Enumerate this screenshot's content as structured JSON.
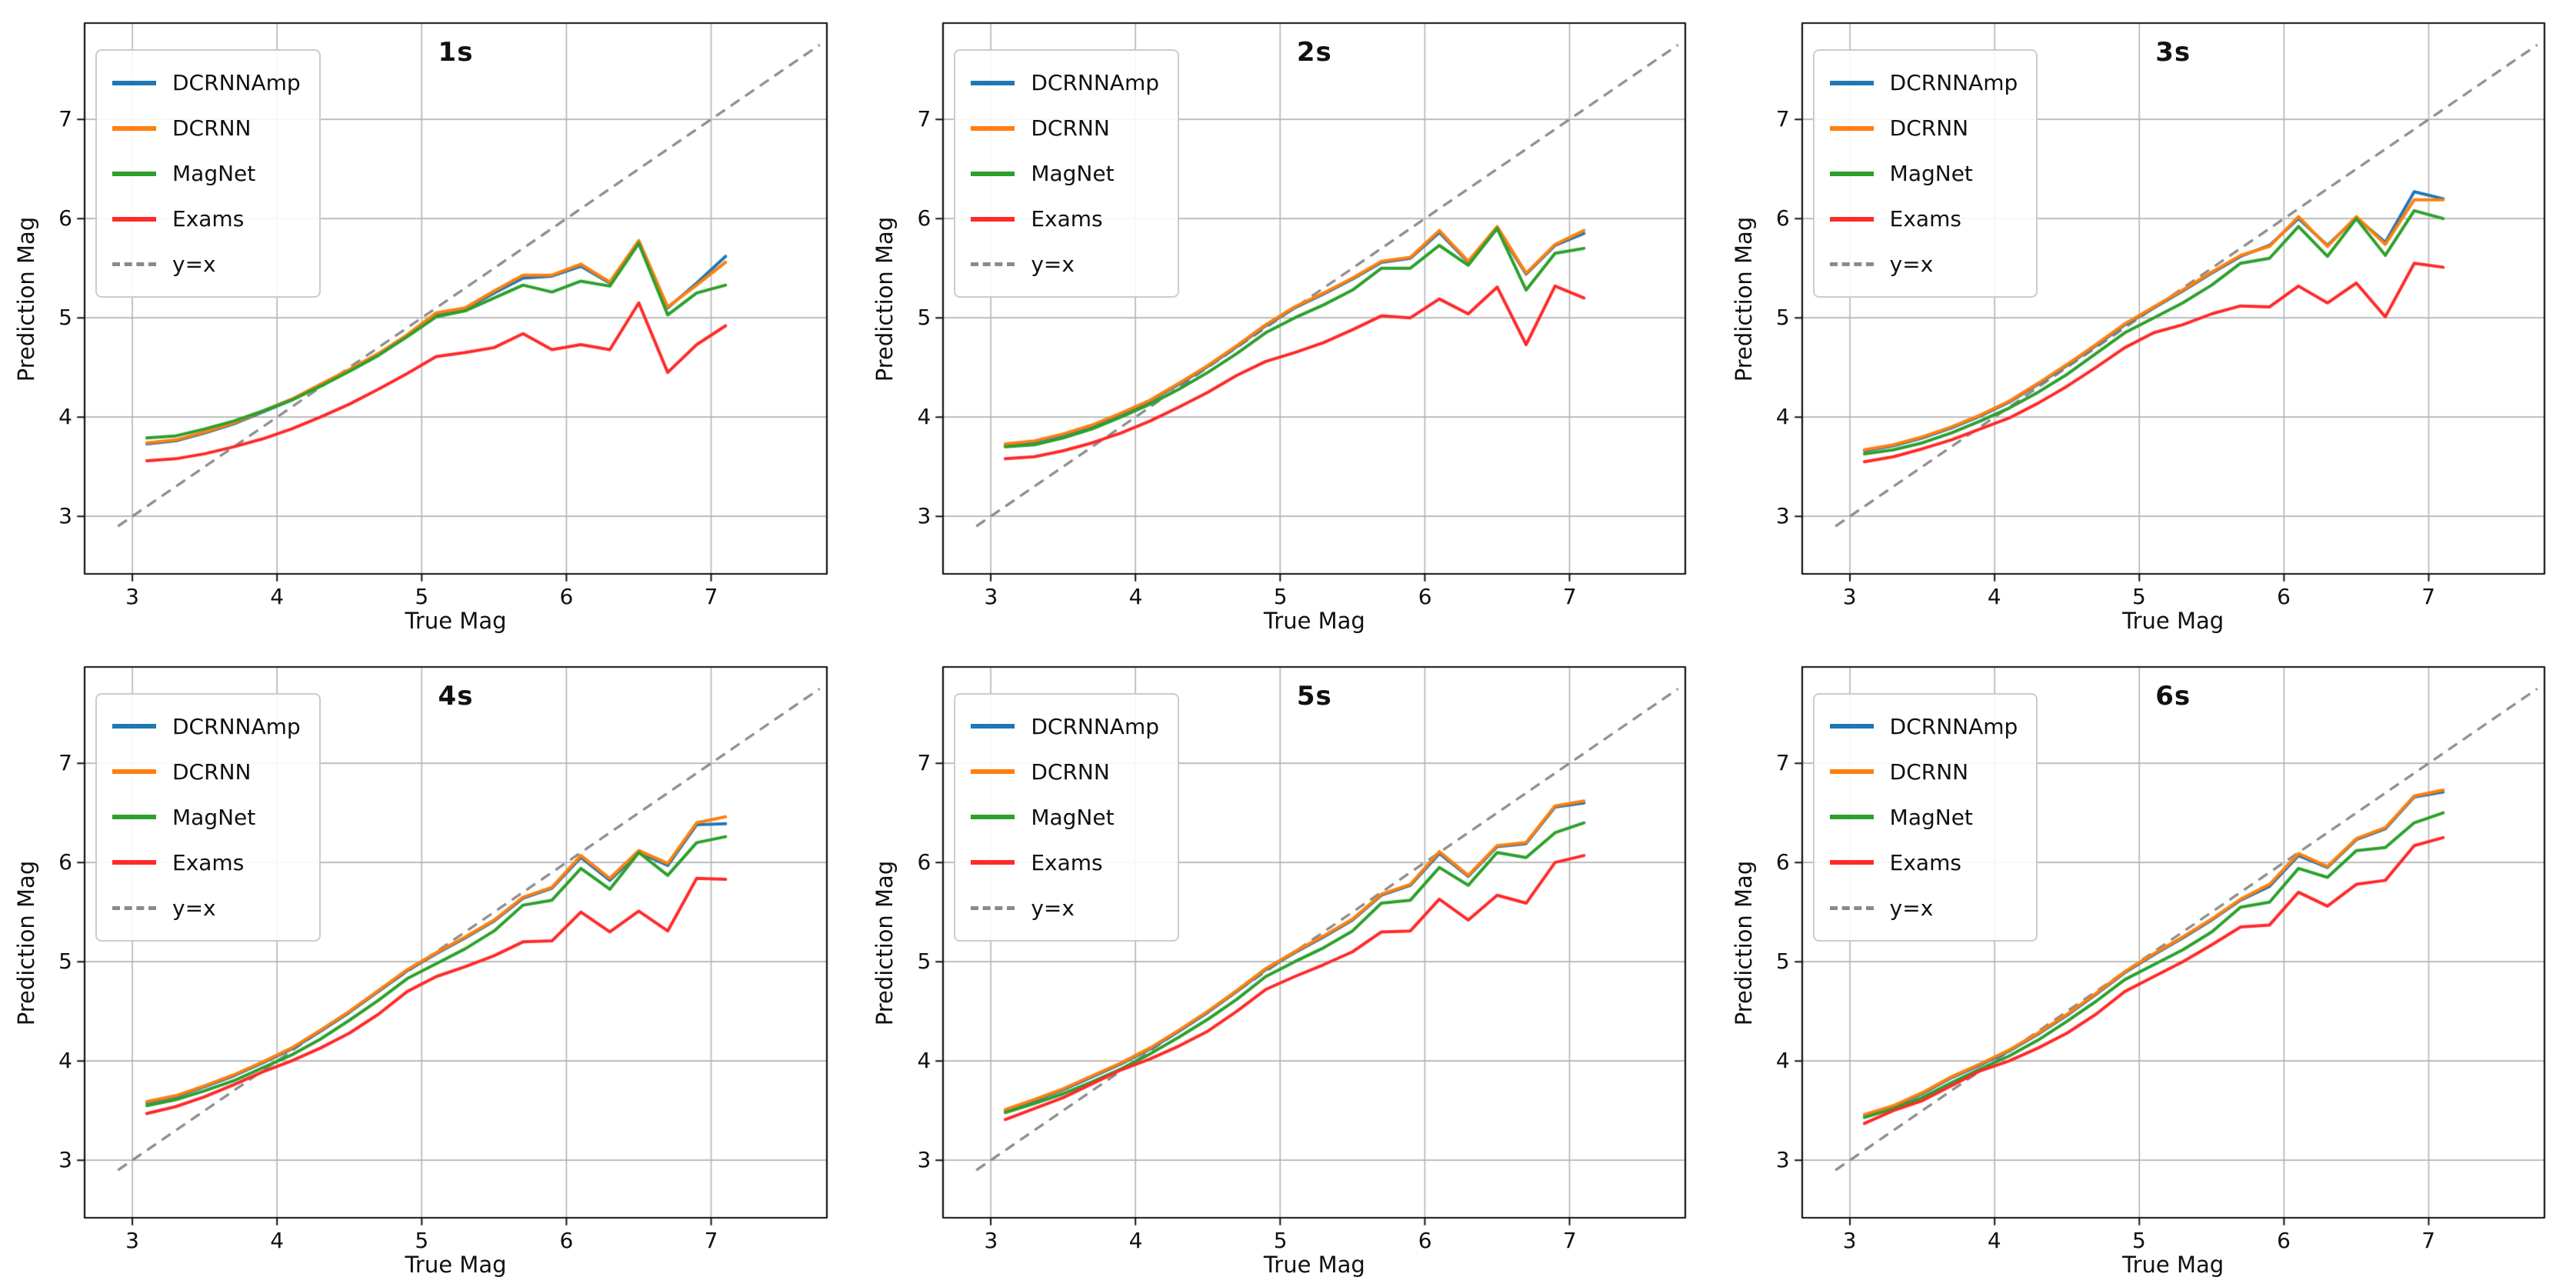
{
  "figure": {
    "xlabel": "True Mag",
    "ylabel": "Prediction Mag"
  },
  "palette": {
    "dcrnnamp": "#1f77b4",
    "dcrnn": "#ff7f0e",
    "magnet": "#2ca02c",
    "exams": "#ff2a2a",
    "identity": "#8a8a8a",
    "grid": "#b3b3b3",
    "spine": "#111111"
  },
  "chart_data": [
    {
      "type": "line",
      "title": "1s",
      "xlabel": "True Mag",
      "ylabel": "Prediction Mag",
      "xlim": [
        2.67,
        7.8
      ],
      "ylim": [
        2.42,
        7.97
      ],
      "xticks": [
        "3",
        "4",
        "5",
        "6",
        "7"
      ],
      "yticks": [
        "3",
        "4",
        "5",
        "6",
        "7"
      ],
      "xtick_values": [
        3,
        4,
        5,
        6,
        7
      ],
      "ytick_values": [
        3,
        4,
        5,
        6,
        7
      ],
      "grid": true,
      "legend_position": "upper-left",
      "x": [
        3.1,
        3.3,
        3.5,
        3.7,
        3.9,
        4.1,
        4.3,
        4.5,
        4.7,
        4.9,
        5.1,
        5.3,
        5.5,
        5.7,
        5.9,
        6.1,
        6.3,
        6.5,
        6.7,
        6.9,
        7.1
      ],
      "series": [
        {
          "name": "DCRNNAmp",
          "color": "#1f77b4",
          "values": [
            3.73,
            3.76,
            3.84,
            3.93,
            4.05,
            4.17,
            4.32,
            4.47,
            4.63,
            4.82,
            5.03,
            5.09,
            5.25,
            5.4,
            5.42,
            5.52,
            5.35,
            5.77,
            5.1,
            5.35,
            5.62
          ]
        },
        {
          "name": "DCRNN",
          "color": "#ff7f0e",
          "values": [
            3.74,
            3.77,
            3.85,
            3.94,
            4.06,
            4.18,
            4.33,
            4.48,
            4.64,
            4.83,
            5.05,
            5.1,
            5.27,
            5.43,
            5.43,
            5.54,
            5.36,
            5.78,
            5.11,
            5.33,
            5.56
          ]
        },
        {
          "name": "MagNet",
          "color": "#2ca02c",
          "values": [
            3.79,
            3.81,
            3.88,
            3.96,
            4.06,
            4.17,
            4.31,
            4.46,
            4.62,
            4.81,
            5.01,
            5.07,
            5.2,
            5.33,
            5.26,
            5.37,
            5.32,
            5.75,
            5.03,
            5.25,
            5.33
          ]
        },
        {
          "name": "Exams",
          "color": "#ff2a2a",
          "values": [
            3.56,
            3.58,
            3.63,
            3.7,
            3.78,
            3.88,
            4.0,
            4.13,
            4.28,
            4.44,
            4.61,
            4.65,
            4.7,
            4.84,
            4.68,
            4.73,
            4.68,
            5.15,
            4.45,
            4.73,
            4.92
          ]
        }
      ],
      "identity_line": {
        "label": "y=x",
        "color": "#8a8a8a",
        "from": 2.9,
        "to": 7.75
      }
    },
    {
      "type": "line",
      "title": "2s",
      "xlabel": "True Mag",
      "ylabel": "Prediction Mag",
      "xlim": [
        2.67,
        7.8
      ],
      "ylim": [
        2.42,
        7.97
      ],
      "xticks": [
        "3",
        "4",
        "5",
        "6",
        "7"
      ],
      "yticks": [
        "3",
        "4",
        "5",
        "6",
        "7"
      ],
      "xtick_values": [
        3,
        4,
        5,
        6,
        7
      ],
      "ytick_values": [
        3,
        4,
        5,
        6,
        7
      ],
      "grid": true,
      "legend_position": "upper-left",
      "x": [
        3.1,
        3.3,
        3.5,
        3.7,
        3.9,
        4.1,
        4.3,
        4.5,
        4.7,
        4.9,
        5.1,
        5.3,
        5.5,
        5.7,
        5.9,
        6.1,
        6.3,
        6.5,
        6.7,
        6.9,
        7.1
      ],
      "series": [
        {
          "name": "DCRNNAmp",
          "color": "#1f77b4",
          "values": [
            3.72,
            3.75,
            3.82,
            3.91,
            4.03,
            4.16,
            4.33,
            4.51,
            4.71,
            4.92,
            5.1,
            5.24,
            5.39,
            5.56,
            5.6,
            5.86,
            5.56,
            5.9,
            5.44,
            5.73,
            5.85
          ]
        },
        {
          "name": "DCRNN",
          "color": "#ff7f0e",
          "values": [
            3.73,
            3.76,
            3.83,
            3.92,
            4.04,
            4.17,
            4.34,
            4.52,
            4.72,
            4.93,
            5.11,
            5.25,
            5.4,
            5.57,
            5.61,
            5.88,
            5.57,
            5.92,
            5.45,
            5.74,
            5.88
          ]
        },
        {
          "name": "MagNet",
          "color": "#2ca02c",
          "values": [
            3.7,
            3.72,
            3.79,
            3.88,
            4.0,
            4.13,
            4.28,
            4.45,
            4.64,
            4.85,
            5.0,
            5.13,
            5.28,
            5.5,
            5.5,
            5.73,
            5.53,
            5.9,
            5.28,
            5.65,
            5.7
          ]
        },
        {
          "name": "Exams",
          "color": "#ff2a2a",
          "values": [
            3.58,
            3.6,
            3.66,
            3.74,
            3.84,
            3.96,
            4.1,
            4.25,
            4.42,
            4.56,
            4.65,
            4.75,
            4.88,
            5.02,
            5.0,
            5.19,
            5.04,
            5.31,
            4.73,
            5.32,
            5.2
          ]
        }
      ],
      "identity_line": {
        "label": "y=x",
        "color": "#8a8a8a",
        "from": 2.9,
        "to": 7.75
      }
    },
    {
      "type": "line",
      "title": "3s",
      "xlabel": "True Mag",
      "ylabel": "Prediction Mag",
      "xlim": [
        2.67,
        7.8
      ],
      "ylim": [
        2.42,
        7.97
      ],
      "xticks": [
        "3",
        "4",
        "5",
        "6",
        "7"
      ],
      "yticks": [
        "3",
        "4",
        "5",
        "6",
        "7"
      ],
      "xtick_values": [
        3,
        4,
        5,
        6,
        7
      ],
      "ytick_values": [
        3,
        4,
        5,
        6,
        7
      ],
      "grid": true,
      "legend_position": "upper-left",
      "x": [
        3.1,
        3.3,
        3.5,
        3.7,
        3.9,
        4.1,
        4.3,
        4.5,
        4.7,
        4.9,
        5.1,
        5.3,
        5.5,
        5.7,
        5.9,
        6.1,
        6.3,
        6.5,
        6.7,
        6.9,
        7.1
      ],
      "series": [
        {
          "name": "DCRNNAmp",
          "color": "#1f77b4",
          "values": [
            3.66,
            3.71,
            3.79,
            3.89,
            4.01,
            4.15,
            4.33,
            4.52,
            4.72,
            4.93,
            5.1,
            5.27,
            5.45,
            5.62,
            5.73,
            6.0,
            5.73,
            6.01,
            5.76,
            6.27,
            6.2
          ]
        },
        {
          "name": "DCRNN",
          "color": "#ff7f0e",
          "values": [
            3.67,
            3.72,
            3.8,
            3.9,
            4.02,
            4.16,
            4.34,
            4.53,
            4.73,
            4.94,
            5.11,
            5.28,
            5.46,
            5.63,
            5.72,
            6.02,
            5.72,
            6.02,
            5.74,
            6.19,
            6.19
          ]
        },
        {
          "name": "MagNet",
          "color": "#2ca02c",
          "values": [
            3.63,
            3.67,
            3.74,
            3.84,
            3.96,
            4.09,
            4.25,
            4.43,
            4.64,
            4.85,
            5.0,
            5.15,
            5.33,
            5.55,
            5.6,
            5.92,
            5.62,
            6.0,
            5.63,
            6.08,
            6.0
          ]
        },
        {
          "name": "Exams",
          "color": "#ff2a2a",
          "values": [
            3.55,
            3.6,
            3.68,
            3.77,
            3.88,
            3.99,
            4.14,
            4.31,
            4.5,
            4.7,
            4.85,
            4.93,
            5.04,
            5.12,
            5.11,
            5.32,
            5.15,
            5.35,
            5.01,
            5.55,
            5.51
          ]
        }
      ],
      "identity_line": {
        "label": "y=x",
        "color": "#8a8a8a",
        "from": 2.9,
        "to": 7.75
      }
    },
    {
      "type": "line",
      "title": "4s",
      "xlabel": "True Mag",
      "ylabel": "Prediction Mag",
      "xlim": [
        2.67,
        7.8
      ],
      "ylim": [
        2.42,
        7.97
      ],
      "xticks": [
        "3",
        "4",
        "5",
        "6",
        "7"
      ],
      "yticks": [
        "3",
        "4",
        "5",
        "6",
        "7"
      ],
      "xtick_values": [
        3,
        4,
        5,
        6,
        7
      ],
      "ytick_values": [
        3,
        4,
        5,
        6,
        7
      ],
      "grid": true,
      "legend_position": "upper-left",
      "x": [
        3.1,
        3.3,
        3.5,
        3.7,
        3.9,
        4.1,
        4.3,
        4.5,
        4.7,
        4.9,
        5.1,
        5.3,
        5.5,
        5.7,
        5.9,
        6.1,
        6.3,
        6.5,
        6.7,
        6.9,
        7.1
      ],
      "series": [
        {
          "name": "DCRNNAmp",
          "color": "#1f77b4",
          "values": [
            3.58,
            3.64,
            3.74,
            3.85,
            3.98,
            4.12,
            4.3,
            4.49,
            4.7,
            4.91,
            5.08,
            5.24,
            5.41,
            5.64,
            5.74,
            6.05,
            5.82,
            6.1,
            5.97,
            6.38,
            6.39
          ]
        },
        {
          "name": "DCRNN",
          "color": "#ff7f0e",
          "values": [
            3.59,
            3.65,
            3.75,
            3.86,
            3.99,
            4.13,
            4.31,
            4.5,
            4.71,
            4.92,
            5.09,
            5.25,
            5.42,
            5.65,
            5.75,
            6.07,
            5.84,
            6.12,
            5.99,
            6.4,
            6.46
          ]
        },
        {
          "name": "MagNet",
          "color": "#2ca02c",
          "values": [
            3.55,
            3.61,
            3.7,
            3.8,
            3.93,
            4.06,
            4.22,
            4.41,
            4.61,
            4.83,
            4.98,
            5.13,
            5.31,
            5.57,
            5.62,
            5.94,
            5.73,
            6.1,
            5.87,
            6.2,
            6.26
          ]
        },
        {
          "name": "Exams",
          "color": "#ff2a2a",
          "values": [
            3.47,
            3.54,
            3.64,
            3.76,
            3.89,
            4.0,
            4.13,
            4.28,
            4.47,
            4.7,
            4.85,
            4.95,
            5.06,
            5.2,
            5.21,
            5.5,
            5.3,
            5.51,
            5.31,
            5.84,
            5.83
          ]
        }
      ],
      "identity_line": {
        "label": "y=x",
        "color": "#8a8a8a",
        "from": 2.9,
        "to": 7.75
      }
    },
    {
      "type": "line",
      "title": "5s",
      "xlabel": "True Mag",
      "ylabel": "Prediction Mag",
      "xlim": [
        2.67,
        7.8
      ],
      "ylim": [
        2.42,
        7.97
      ],
      "xticks": [
        "3",
        "4",
        "5",
        "6",
        "7"
      ],
      "yticks": [
        "3",
        "4",
        "5",
        "6",
        "7"
      ],
      "xtick_values": [
        3,
        4,
        5,
        6,
        7
      ],
      "ytick_values": [
        3,
        4,
        5,
        6,
        7
      ],
      "grid": true,
      "legend_position": "upper-left",
      "x": [
        3.1,
        3.3,
        3.5,
        3.7,
        3.9,
        4.1,
        4.3,
        4.5,
        4.7,
        4.9,
        5.1,
        5.3,
        5.5,
        5.7,
        5.9,
        6.1,
        6.3,
        6.5,
        6.7,
        6.9,
        7.1
      ],
      "series": [
        {
          "name": "DCRNNAmp",
          "color": "#1f77b4",
          "values": [
            3.5,
            3.6,
            3.71,
            3.84,
            3.97,
            4.12,
            4.3,
            4.49,
            4.7,
            4.92,
            5.09,
            5.25,
            5.42,
            5.67,
            5.77,
            6.09,
            5.86,
            6.16,
            6.19,
            6.56,
            6.6
          ]
        },
        {
          "name": "DCRNN",
          "color": "#ff7f0e",
          "values": [
            3.51,
            3.61,
            3.72,
            3.85,
            3.98,
            4.13,
            4.31,
            4.5,
            4.71,
            4.93,
            5.1,
            5.26,
            5.43,
            5.68,
            5.78,
            6.11,
            5.87,
            6.17,
            6.2,
            6.57,
            6.62
          ]
        },
        {
          "name": "MagNet",
          "color": "#2ca02c",
          "values": [
            3.48,
            3.57,
            3.67,
            3.79,
            3.92,
            4.07,
            4.24,
            4.42,
            4.62,
            4.85,
            5.0,
            5.14,
            5.31,
            5.59,
            5.62,
            5.95,
            5.77,
            6.1,
            6.05,
            6.3,
            6.4
          ]
        },
        {
          "name": "Exams",
          "color": "#ff2a2a",
          "values": [
            3.41,
            3.52,
            3.63,
            3.77,
            3.91,
            4.02,
            4.15,
            4.3,
            4.5,
            4.72,
            4.85,
            4.97,
            5.1,
            5.3,
            5.31,
            5.63,
            5.42,
            5.67,
            5.59,
            6.0,
            6.07
          ]
        }
      ],
      "identity_line": {
        "label": "y=x",
        "color": "#8a8a8a",
        "from": 2.9,
        "to": 7.75
      }
    },
    {
      "type": "line",
      "title": "6s",
      "xlabel": "True Mag",
      "ylabel": "Prediction Mag",
      "xlim": [
        2.67,
        7.8
      ],
      "ylim": [
        2.42,
        7.97
      ],
      "xticks": [
        "3",
        "4",
        "5",
        "6",
        "7"
      ],
      "yticks": [
        "3",
        "4",
        "5",
        "6",
        "7"
      ],
      "xtick_values": [
        3,
        4,
        5,
        6,
        7
      ],
      "ytick_values": [
        3,
        4,
        5,
        6,
        7
      ],
      "grid": true,
      "legend_position": "upper-left",
      "x": [
        3.1,
        3.3,
        3.5,
        3.7,
        3.9,
        4.1,
        4.3,
        4.5,
        4.7,
        4.9,
        5.1,
        5.3,
        5.5,
        5.7,
        5.9,
        6.1,
        6.3,
        6.5,
        6.7,
        6.9,
        7.1
      ],
      "series": [
        {
          "name": "DCRNNAmp",
          "color": "#1f77b4",
          "values": [
            3.45,
            3.54,
            3.67,
            3.83,
            3.96,
            4.1,
            4.27,
            4.46,
            4.67,
            4.89,
            5.07,
            5.24,
            5.42,
            5.62,
            5.76,
            6.07,
            5.95,
            6.23,
            6.34,
            6.66,
            6.71
          ]
        },
        {
          "name": "DCRNN",
          "color": "#ff7f0e",
          "values": [
            3.46,
            3.55,
            3.68,
            3.84,
            3.97,
            4.11,
            4.28,
            4.47,
            4.68,
            4.9,
            5.08,
            5.25,
            5.43,
            5.63,
            5.78,
            6.09,
            5.96,
            6.24,
            6.35,
            6.67,
            6.73
          ]
        },
        {
          "name": "MagNet",
          "color": "#2ca02c",
          "values": [
            3.43,
            3.52,
            3.63,
            3.78,
            3.92,
            4.05,
            4.21,
            4.4,
            4.6,
            4.82,
            4.97,
            5.12,
            5.3,
            5.55,
            5.6,
            5.94,
            5.85,
            6.12,
            6.15,
            6.4,
            6.5
          ]
        },
        {
          "name": "Exams",
          "color": "#ff2a2a",
          "values": [
            3.37,
            3.5,
            3.6,
            3.75,
            3.9,
            4.0,
            4.13,
            4.28,
            4.47,
            4.7,
            4.85,
            5.0,
            5.17,
            5.35,
            5.37,
            5.7,
            5.56,
            5.78,
            5.82,
            6.17,
            6.25
          ]
        }
      ],
      "identity_line": {
        "label": "y=x",
        "color": "#8a8a8a",
        "from": 2.9,
        "to": 7.75
      }
    }
  ]
}
